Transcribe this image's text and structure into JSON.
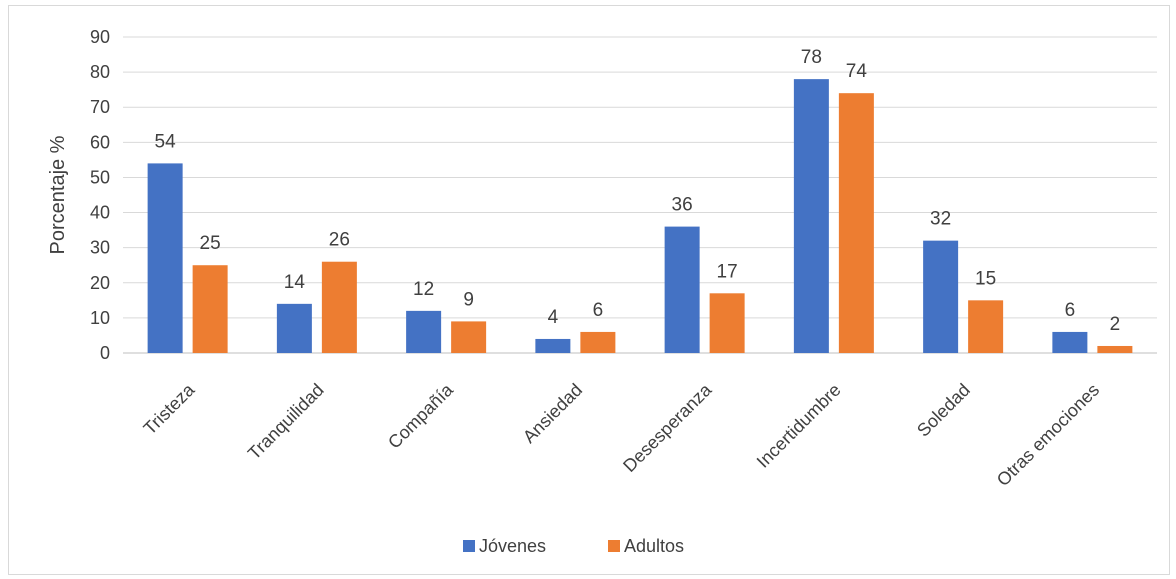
{
  "chart_data": {
    "type": "bar",
    "ylabel": "Porcentaje %",
    "xlabel": "",
    "ylim": [
      0,
      90
    ],
    "yticks": [
      0,
      10,
      20,
      30,
      40,
      50,
      60,
      70,
      80,
      90
    ],
    "categories": [
      "Tristeza",
      "Tranquilidad",
      "Compañía",
      "Ansiedad",
      "Desesperanza",
      "Incertidumbre",
      "Soledad",
      "Otras emociones"
    ],
    "series": [
      {
        "name": "Jóvenes",
        "color": "#4472c4",
        "values": [
          54,
          14,
          12,
          4,
          36,
          78,
          32,
          6
        ]
      },
      {
        "name": "Adultos",
        "color": "#ed7d31",
        "values": [
          25,
          26,
          9,
          6,
          17,
          74,
          15,
          2
        ]
      }
    ],
    "grid": true,
    "legend": "bottom"
  }
}
